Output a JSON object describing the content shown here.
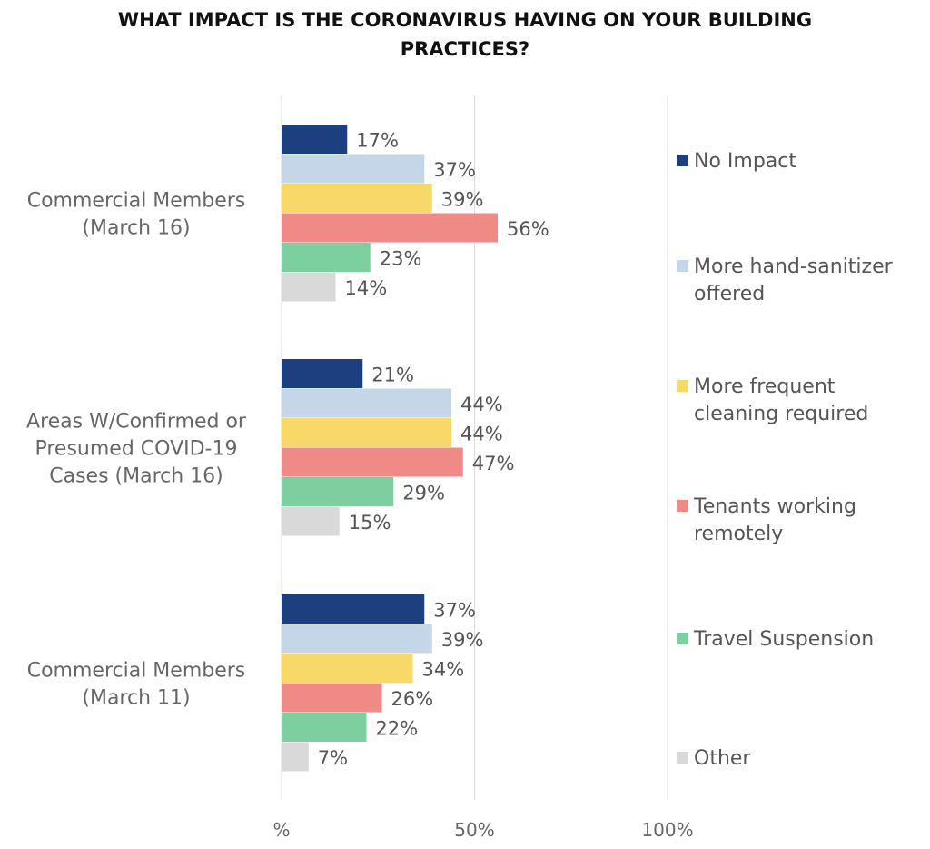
{
  "chart_data": {
    "type": "bar",
    "orientation": "horizontal",
    "title": "WHAT IMPACT IS THE CORONAVIRUS HAVING ON YOUR BUILDING\nPRACTICES?",
    "categories": [
      "Commercial Members (March 16)",
      "Areas W/Confirmed or Presumed COVID-19 Cases (March 16)",
      "Commercial Members (March 11)"
    ],
    "category_lines": [
      [
        "Commercial Members",
        "(March 16)"
      ],
      [
        "Areas W/Confirmed or",
        "Presumed COVID-19",
        "Cases (March 16)"
      ],
      [
        "Commercial Members",
        "(March 11)"
      ]
    ],
    "series": [
      {
        "name": "No Impact",
        "color": "#1c3f7f",
        "values": [
          17,
          21,
          37
        ]
      },
      {
        "name": "More hand-sanitizer offered",
        "color": "#c5d6e8",
        "values": [
          37,
          44,
          39
        ]
      },
      {
        "name": "More frequent cleaning required",
        "color": "#f9d86a",
        "values": [
          39,
          44,
          34
        ]
      },
      {
        "name": "Tenants working remotely",
        "color": "#f08a87",
        "values": [
          56,
          47,
          26
        ]
      },
      {
        "name": "Travel Suspension",
        "color": "#7ecfa0",
        "values": [
          23,
          29,
          22
        ]
      },
      {
        "name": "Other",
        "color": "#d9d9d9",
        "values": [
          14,
          15,
          7
        ]
      }
    ],
    "legend_lines": [
      [
        "No Impact"
      ],
      [
        "More hand-sanitizer",
        "offered"
      ],
      [
        "More frequent",
        "cleaning required"
      ],
      [
        "Tenants working",
        "remotely"
      ],
      [
        "Travel Suspension"
      ],
      [
        "Other"
      ]
    ],
    "value_suffix": "%",
    "xlim": [
      0,
      100
    ],
    "xticks": [
      0,
      50,
      100
    ],
    "xtick_labels": [
      "%",
      "50%",
      "100%"
    ],
    "grid": true,
    "legend_position": "right"
  }
}
